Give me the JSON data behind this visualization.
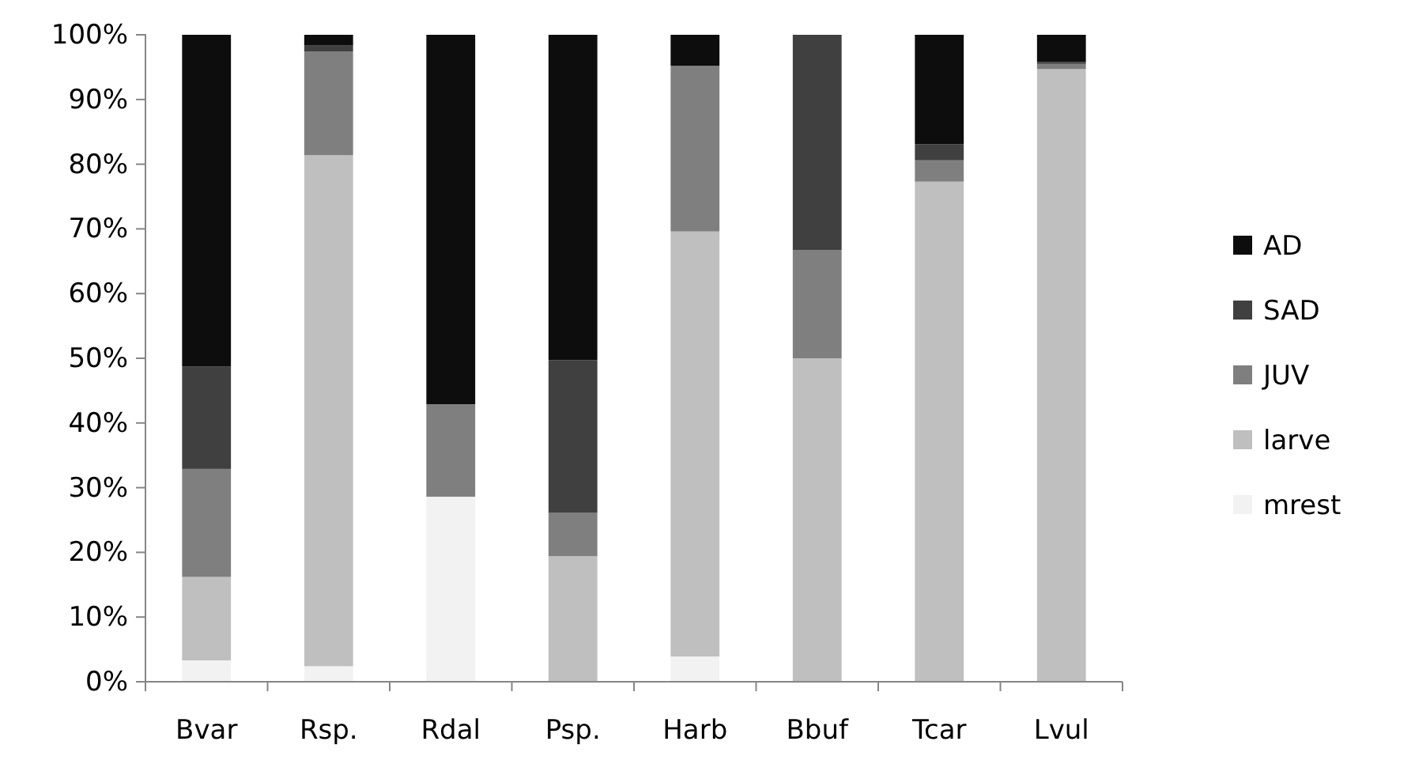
{
  "chart_data": {
    "type": "bar",
    "stacked": true,
    "categories": [
      "Bvar",
      "Rsp.",
      "Rdal",
      "Psp.",
      "Harb",
      "Bbuf",
      "Tcar",
      "Lvul"
    ],
    "series": [
      {
        "name": "mrest",
        "color": "#f2f2f2",
        "values": [
          3.3,
          2.4,
          28.6,
          0,
          3.9,
          0,
          0,
          0
        ]
      },
      {
        "name": "larve",
        "color": "#bfbfbf",
        "values": [
          12.9,
          79,
          0,
          19.4,
          65.7,
          50,
          77.3,
          94.7
        ]
      },
      {
        "name": "JUV",
        "color": "#7f7f7f",
        "values": [
          16.7,
          16,
          14.3,
          6.7,
          25.6,
          16.7,
          3.3,
          0.8
        ]
      },
      {
        "name": "SAD",
        "color": "#404040",
        "values": [
          15.8,
          1,
          0,
          23.6,
          0,
          33.3,
          2.5,
          0.3
        ]
      },
      {
        "name": "AD",
        "color": "#0d0d0d",
        "values": [
          51.3,
          1.6,
          57.1,
          50.3,
          4.8,
          0,
          16.9,
          4.2
        ]
      }
    ],
    "ylim": [
      0,
      100
    ],
    "yticks": [
      {
        "value": 0,
        "label": "0%"
      },
      {
        "value": 10,
        "label": "10%"
      },
      {
        "value": 20,
        "label": "20%"
      },
      {
        "value": 30,
        "label": "30%"
      },
      {
        "value": 40,
        "label": "40%"
      },
      {
        "value": 50,
        "label": "50%"
      },
      {
        "value": 60,
        "label": "60%"
      },
      {
        "value": 70,
        "label": "70%"
      },
      {
        "value": 80,
        "label": "80%"
      },
      {
        "value": 90,
        "label": "90%"
      },
      {
        "value": 100,
        "label": "100%"
      }
    ],
    "legend": "right"
  }
}
